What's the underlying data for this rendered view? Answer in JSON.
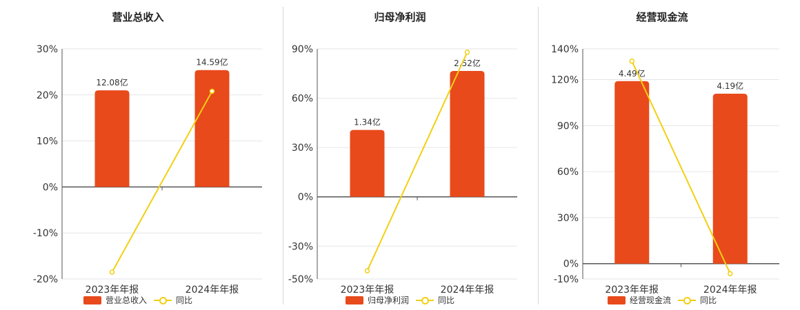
{
  "colors": {
    "bar": "#e84a1b",
    "line": "#f2cf12",
    "axis": "#555555",
    "grid": "#e6e6ea",
    "divider": "#d6d6d6"
  },
  "chart_data": [
    {
      "type": "bar",
      "title": "营业总收入",
      "categories": [
        "2023年年报",
        "2024年年报"
      ],
      "series": [
        {
          "name": "营业总收入",
          "kind": "bar",
          "axis": "y",
          "values": [
            21.0,
            25.4
          ],
          "labels": [
            "12.08亿",
            "14.59亿"
          ]
        },
        {
          "name": "同比",
          "kind": "line",
          "axis": "y",
          "values": [
            -18.5,
            20.8
          ]
        }
      ],
      "yticks": [
        "30%",
        "20%",
        "10%",
        "0%",
        "-10%",
        "-20%"
      ],
      "tick_values": [
        30,
        20,
        10,
        0,
        -10,
        -20
      ],
      "ylim": [
        -20,
        30
      ],
      "grid": true,
      "legend_position": "bottom"
    },
    {
      "type": "bar",
      "title": "归母净利润",
      "categories": [
        "2023年年报",
        "2024年年报"
      ],
      "series": [
        {
          "name": "归母净利润",
          "kind": "bar",
          "axis": "y",
          "values": [
            40.7,
            76.6
          ],
          "labels": [
            "1.34亿",
            "2.52亿"
          ]
        },
        {
          "name": "同比",
          "kind": "line",
          "axis": "y",
          "values": [
            -45.0,
            88.0
          ]
        }
      ],
      "yticks": [
        "90%",
        "60%",
        "30%",
        "0%",
        "-30%",
        "-50%"
      ],
      "tick_values": [
        90,
        60,
        30,
        0,
        -30,
        -50
      ],
      "ylim": [
        -50,
        90
      ],
      "grid": true,
      "legend_position": "bottom"
    },
    {
      "type": "bar",
      "title": "经营现金流",
      "categories": [
        "2023年年报",
        "2024年年报"
      ],
      "series": [
        {
          "name": "经营现金流",
          "kind": "bar",
          "axis": "y",
          "values": [
            119.0,
            110.8
          ],
          "labels": [
            "4.49亿",
            "4.19亿"
          ]
        },
        {
          "name": "同比",
          "kind": "line",
          "axis": "y",
          "values": [
            132.0,
            -6.5
          ]
        }
      ],
      "yticks": [
        "140%",
        "120%",
        "90%",
        "60%",
        "30%",
        "0%",
        "-10%"
      ],
      "tick_values": [
        140,
        120,
        90,
        60,
        30,
        0,
        -10
      ],
      "ylim": [
        -10,
        140
      ],
      "grid": true,
      "legend_position": "bottom"
    }
  ]
}
